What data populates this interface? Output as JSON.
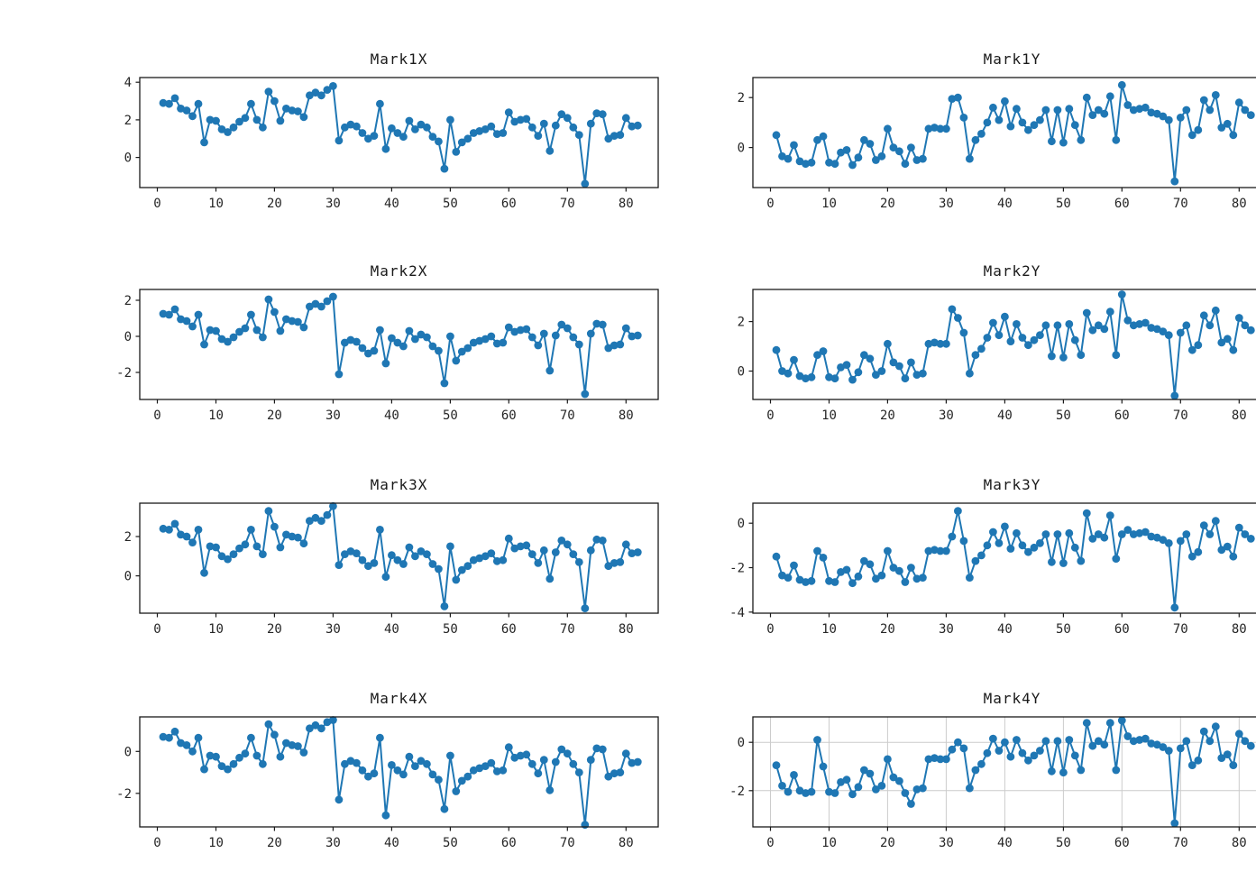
{
  "figure": {
    "background": "#ffffff",
    "series_color": "#1f77b4",
    "axis_color": "#1a1a1a",
    "grid_color": "#cccccc",
    "marker": "circle"
  },
  "chart_data": [
    {
      "type": "line",
      "title": "Mark1X",
      "color": "#1f77b4",
      "grid": false,
      "x_start": 1,
      "xlim": [
        -3,
        85.5
      ],
      "ylim": [
        -1.6,
        4.25
      ],
      "xticks": [
        0,
        10,
        20,
        30,
        40,
        50,
        60,
        70,
        80
      ],
      "yticks": [
        4,
        2,
        0
      ],
      "values": [
        2.9,
        2.85,
        3.15,
        2.6,
        2.5,
        2.2,
        2.85,
        0.8,
        2.0,
        1.95,
        1.5,
        1.35,
        1.6,
        1.9,
        2.1,
        2.85,
        2.0,
        1.6,
        3.5,
        3.0,
        1.95,
        2.6,
        2.5,
        2.45,
        2.15,
        3.3,
        3.45,
        3.3,
        3.6,
        3.8,
        0.9,
        1.6,
        1.75,
        1.65,
        1.3,
        1.0,
        1.15,
        2.85,
        0.45,
        1.55,
        1.3,
        1.1,
        1.95,
        1.5,
        1.75,
        1.6,
        1.1,
        0.85,
        -0.6,
        2.0,
        0.3,
        0.8,
        1.0,
        1.3,
        1.4,
        1.5,
        1.65,
        1.25,
        1.3,
        2.4,
        1.9,
        2.0,
        2.05,
        1.6,
        1.15,
        1.8,
        0.35,
        1.7,
        2.3,
        2.1,
        1.6,
        1.2,
        -1.4,
        1.8,
        2.35,
        2.3,
        1.0,
        1.15,
        1.2,
        2.1,
        1.65,
        1.7
      ]
    },
    {
      "type": "line",
      "title": "Mark1Y",
      "color": "#1f77b4",
      "grid": false,
      "x_start": 1,
      "xlim": [
        -3,
        85.5
      ],
      "ylim": [
        -1.6,
        2.8
      ],
      "xticks": [
        0,
        10,
        20,
        30,
        40,
        50,
        60,
        70,
        80
      ],
      "yticks": [
        2,
        0
      ],
      "values": [
        0.5,
        -0.35,
        -0.45,
        0.1,
        -0.55,
        -0.65,
        -0.6,
        0.3,
        0.45,
        -0.6,
        -0.65,
        -0.2,
        -0.1,
        -0.7,
        -0.4,
        0.3,
        0.15,
        -0.5,
        -0.35,
        0.75,
        0.0,
        -0.15,
        -0.65,
        0.0,
        -0.5,
        -0.45,
        0.75,
        0.8,
        0.75,
        0.75,
        1.95,
        2.0,
        1.2,
        -0.45,
        0.3,
        0.55,
        1.0,
        1.6,
        1.1,
        1.85,
        0.85,
        1.55,
        1.0,
        0.7,
        0.9,
        1.1,
        1.5,
        0.25,
        1.5,
        0.2,
        1.55,
        0.9,
        0.3,
        2.0,
        1.3,
        1.5,
        1.35,
        2.05,
        0.3,
        2.5,
        1.7,
        1.5,
        1.55,
        1.6,
        1.4,
        1.35,
        1.25,
        1.1,
        -1.35,
        1.2,
        1.5,
        0.5,
        0.7,
        1.9,
        1.5,
        2.1,
        0.8,
        0.95,
        0.5,
        1.8,
        1.5,
        1.3
      ]
    },
    {
      "type": "line",
      "title": "Mark2X",
      "color": "#1f77b4",
      "grid": false,
      "x_start": 1,
      "xlim": [
        -3,
        85.5
      ],
      "ylim": [
        -3.5,
        2.6
      ],
      "xticks": [
        0,
        10,
        20,
        30,
        40,
        50,
        60,
        70,
        80
      ],
      "yticks": [
        2,
        0,
        -2
      ],
      "values": [
        1.25,
        1.2,
        1.5,
        0.95,
        0.85,
        0.55,
        1.2,
        -0.45,
        0.35,
        0.3,
        -0.15,
        -0.3,
        -0.05,
        0.25,
        0.45,
        1.2,
        0.35,
        -0.05,
        2.05,
        1.35,
        0.3,
        0.95,
        0.85,
        0.8,
        0.5,
        1.65,
        1.8,
        1.65,
        1.95,
        2.2,
        -2.1,
        -0.35,
        -0.2,
        -0.3,
        -0.65,
        -0.95,
        -0.8,
        0.35,
        -1.5,
        -0.1,
        -0.35,
        -0.55,
        0.3,
        -0.15,
        0.1,
        -0.05,
        -0.55,
        -0.8,
        -2.6,
        0.0,
        -1.35,
        -0.85,
        -0.65,
        -0.35,
        -0.25,
        -0.15,
        0.0,
        -0.4,
        -0.35,
        0.5,
        0.25,
        0.35,
        0.4,
        -0.05,
        -0.5,
        0.15,
        -1.9,
        0.05,
        0.65,
        0.45,
        -0.05,
        -0.45,
        -3.2,
        0.15,
        0.7,
        0.65,
        -0.65,
        -0.5,
        -0.45,
        0.45,
        0.0,
        0.05
      ]
    },
    {
      "type": "line",
      "title": "Mark2Y",
      "color": "#1f77b4",
      "grid": false,
      "x_start": 1,
      "xlim": [
        -3,
        85.5
      ],
      "ylim": [
        -1.15,
        3.3
      ],
      "xticks": [
        0,
        10,
        20,
        30,
        40,
        50,
        60,
        70,
        80
      ],
      "yticks": [
        2,
        0
      ],
      "values": [
        0.85,
        0.0,
        -0.1,
        0.45,
        -0.2,
        -0.3,
        -0.25,
        0.65,
        0.8,
        -0.25,
        -0.3,
        0.15,
        0.25,
        -0.35,
        -0.05,
        0.65,
        0.5,
        -0.15,
        0.0,
        1.1,
        0.35,
        0.2,
        -0.3,
        0.35,
        -0.15,
        -0.1,
        1.1,
        1.15,
        1.1,
        1.1,
        2.5,
        2.15,
        1.55,
        -0.1,
        0.65,
        0.9,
        1.35,
        1.95,
        1.45,
        2.2,
        1.2,
        1.9,
        1.35,
        1.05,
        1.25,
        1.45,
        1.85,
        0.6,
        1.85,
        0.55,
        1.9,
        1.25,
        0.65,
        2.35,
        1.65,
        1.85,
        1.7,
        2.4,
        0.65,
        3.1,
        2.05,
        1.85,
        1.9,
        1.95,
        1.75,
        1.7,
        1.6,
        1.45,
        -1.0,
        1.55,
        1.85,
        0.85,
        1.05,
        2.25,
        1.85,
        2.45,
        1.15,
        1.3,
        0.85,
        2.15,
        1.85,
        1.65
      ]
    },
    {
      "type": "line",
      "title": "Mark3X",
      "color": "#1f77b4",
      "grid": false,
      "x_start": 1,
      "xlim": [
        -3,
        85.5
      ],
      "ylim": [
        -1.9,
        3.7
      ],
      "xticks": [
        0,
        10,
        20,
        30,
        40,
        50,
        60,
        70,
        80
      ],
      "yticks": [
        2,
        0
      ],
      "values": [
        2.4,
        2.35,
        2.65,
        2.1,
        2.0,
        1.7,
        2.35,
        0.15,
        1.5,
        1.45,
        1.0,
        0.85,
        1.1,
        1.4,
        1.6,
        2.35,
        1.5,
        1.1,
        3.3,
        2.5,
        1.45,
        2.1,
        2.0,
        1.95,
        1.65,
        2.8,
        2.95,
        2.8,
        3.1,
        3.55,
        0.55,
        1.1,
        1.25,
        1.15,
        0.8,
        0.5,
        0.65,
        2.35,
        -0.05,
        1.05,
        0.8,
        0.6,
        1.45,
        1.0,
        1.25,
        1.1,
        0.6,
        0.35,
        -1.55,
        1.5,
        -0.2,
        0.3,
        0.5,
        0.8,
        0.9,
        1.0,
        1.15,
        0.75,
        0.8,
        1.9,
        1.4,
        1.5,
        1.55,
        1.1,
        0.65,
        1.3,
        -0.15,
        1.2,
        1.8,
        1.6,
        1.1,
        0.7,
        -1.65,
        1.3,
        1.85,
        1.8,
        0.5,
        0.65,
        0.7,
        1.6,
        1.15,
        1.2
      ]
    },
    {
      "type": "line",
      "title": "Mark3Y",
      "color": "#1f77b4",
      "grid": false,
      "x_start": 1,
      "xlim": [
        -3,
        85.5
      ],
      "ylim": [
        -4.05,
        0.9
      ],
      "xticks": [
        0,
        10,
        20,
        30,
        40,
        50,
        60,
        70,
        80
      ],
      "yticks": [
        0,
        -2,
        -4
      ],
      "values": [
        -1.5,
        -2.35,
        -2.45,
        -1.9,
        -2.55,
        -2.65,
        -2.6,
        -1.25,
        -1.55,
        -2.6,
        -2.65,
        -2.2,
        -2.1,
        -2.7,
        -2.4,
        -1.7,
        -1.85,
        -2.5,
        -2.35,
        -1.25,
        -2.0,
        -2.15,
        -2.65,
        -2.0,
        -2.5,
        -2.45,
        -1.25,
        -1.2,
        -1.25,
        -1.25,
        -0.6,
        0.55,
        -0.8,
        -2.45,
        -1.7,
        -1.45,
        -1.0,
        -0.4,
        -0.9,
        -0.15,
        -1.15,
        -0.45,
        -1.0,
        -1.3,
        -1.1,
        -0.9,
        -0.5,
        -1.75,
        -0.5,
        -1.8,
        -0.45,
        -1.1,
        -1.7,
        0.45,
        -0.7,
        -0.5,
        -0.65,
        0.35,
        -1.6,
        -0.5,
        -0.3,
        -0.5,
        -0.45,
        -0.4,
        -0.6,
        -0.65,
        -0.75,
        -0.9,
        -3.8,
        -0.8,
        -0.5,
        -1.5,
        -1.3,
        -0.1,
        -0.5,
        0.1,
        -1.2,
        -1.05,
        -1.5,
        -0.2,
        -0.5,
        -0.7
      ]
    },
    {
      "type": "line",
      "title": "Mark4X",
      "color": "#1f77b4",
      "grid": false,
      "x_start": 1,
      "xlim": [
        -3,
        85.5
      ],
      "ylim": [
        -3.6,
        1.65
      ],
      "xticks": [
        0,
        10,
        20,
        30,
        40,
        50,
        60,
        70,
        80
      ],
      "yticks": [
        0,
        -2
      ],
      "values": [
        0.7,
        0.65,
        0.95,
        0.4,
        0.3,
        0.0,
        0.65,
        -0.85,
        -0.2,
        -0.25,
        -0.7,
        -0.85,
        -0.6,
        -0.3,
        -0.1,
        0.65,
        -0.2,
        -0.6,
        1.3,
        0.8,
        -0.25,
        0.4,
        0.3,
        0.25,
        -0.05,
        1.1,
        1.25,
        1.1,
        1.4,
        1.5,
        -2.3,
        -0.6,
        -0.45,
        -0.55,
        -0.9,
        -1.2,
        -1.05,
        0.65,
        -3.05,
        -0.65,
        -0.9,
        -1.1,
        -0.25,
        -0.7,
        -0.45,
        -0.6,
        -1.1,
        -1.35,
        -2.75,
        -0.2,
        -1.9,
        -1.4,
        -1.2,
        -0.9,
        -0.8,
        -0.7,
        -0.55,
        -0.95,
        -0.9,
        0.2,
        -0.3,
        -0.2,
        -0.15,
        -0.6,
        -1.05,
        -0.4,
        -1.85,
        -0.5,
        0.1,
        -0.1,
        -0.6,
        -1.0,
        -3.5,
        -0.4,
        0.15,
        0.1,
        -1.2,
        -1.05,
        -1.0,
        -0.1,
        -0.55,
        -0.5
      ]
    },
    {
      "type": "line",
      "title": "Mark4Y",
      "color": "#1f77b4",
      "grid": true,
      "x_start": 1,
      "xlim": [
        -3,
        85.5
      ],
      "ylim": [
        -3.5,
        1.05
      ],
      "xticks": [
        0,
        10,
        20,
        30,
        40,
        50,
        60,
        70,
        80
      ],
      "yticks": [
        0,
        -2
      ],
      "values": [
        -0.95,
        -1.8,
        -2.05,
        -1.35,
        -2.0,
        -2.1,
        -2.05,
        0.1,
        -1.0,
        -2.05,
        -2.1,
        -1.65,
        -1.55,
        -2.15,
        -1.85,
        -1.15,
        -1.3,
        -1.95,
        -1.8,
        -0.7,
        -1.45,
        -1.6,
        -2.1,
        -2.55,
        -1.95,
        -1.9,
        -0.7,
        -0.65,
        -0.7,
        -0.7,
        -0.3,
        0.0,
        -0.25,
        -1.9,
        -1.15,
        -0.9,
        -0.45,
        0.15,
        -0.35,
        0.0,
        -0.6,
        0.1,
        -0.45,
        -0.75,
        -0.55,
        -0.35,
        0.05,
        -1.2,
        0.05,
        -1.25,
        0.1,
        -0.55,
        -1.15,
        0.8,
        -0.15,
        0.05,
        -0.1,
        0.8,
        -1.15,
        0.9,
        0.25,
        0.05,
        0.1,
        0.15,
        -0.05,
        -0.1,
        -0.2,
        -0.35,
        -3.35,
        -0.25,
        0.05,
        -0.95,
        -0.75,
        0.45,
        0.05,
        0.65,
        -0.65,
        -0.5,
        -0.95,
        0.35,
        0.05,
        -0.15
      ]
    }
  ]
}
